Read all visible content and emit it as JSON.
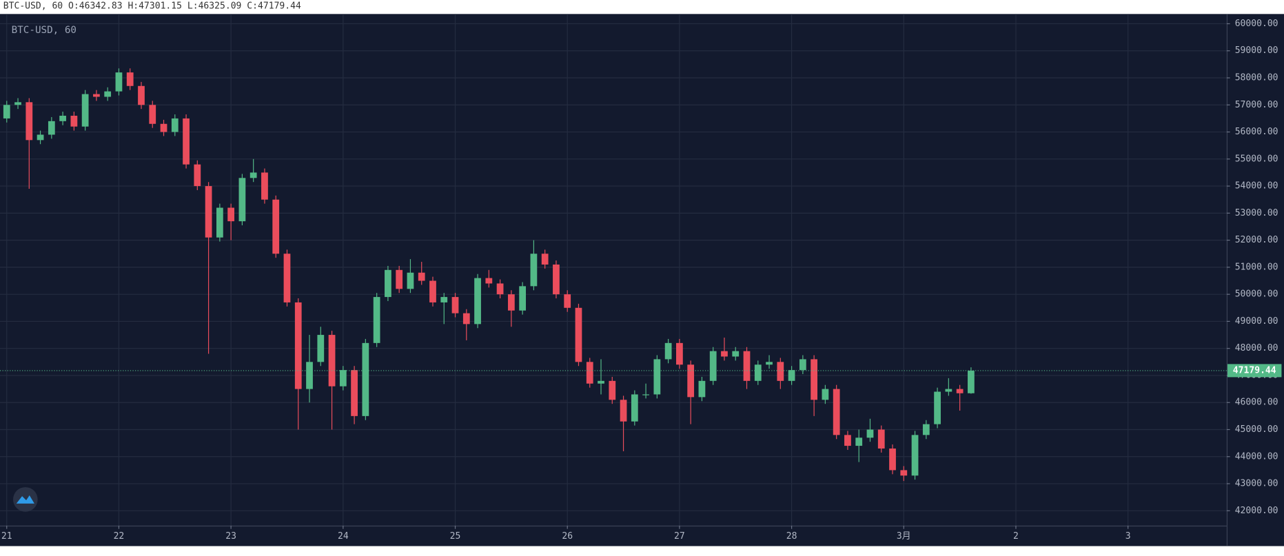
{
  "chart_data": {
    "type": "candlestick",
    "title": "BTC-USD, 60",
    "ohlc_labels": [
      "O:",
      "H:",
      "L:",
      "C:"
    ],
    "up_color": "#53b987",
    "down_color": "#eb4d5c",
    "grid": true,
    "price_line": true,
    "x": [
      0,
      0.1,
      0.2,
      0.3,
      0.4,
      0.5,
      0.6,
      0.7,
      0.8,
      0.9,
      1,
      1.1,
      1.2,
      1.3,
      1.4,
      1.5,
      1.6,
      1.7,
      1.8,
      1.9,
      2,
      2.1,
      2.2,
      2.3,
      2.4,
      2.5,
      2.6,
      2.7,
      2.8,
      2.9,
      3,
      3.1,
      3.2,
      3.3,
      3.4,
      3.5,
      3.6,
      3.7,
      3.8,
      3.9,
      4,
      4.1,
      4.2,
      4.3,
      4.4,
      4.5,
      4.6,
      4.7,
      4.8,
      4.9,
      5,
      5.1,
      5.2,
      5.3,
      5.4,
      5.5,
      5.6,
      5.7,
      5.8,
      5.9,
      6,
      6.1,
      6.2,
      6.3,
      6.4,
      6.5,
      6.6,
      6.7,
      6.8,
      6.9,
      7,
      7.1,
      7.2,
      7.3,
      7.4,
      7.5,
      7.6,
      7.7,
      7.8,
      7.9,
      8,
      8.1,
      8.2,
      8.3,
      8.4,
      8.5,
      8.6
    ],
    "open": [
      56500,
      57000,
      57100,
      55700,
      55900,
      56400,
      56600,
      56200,
      57400,
      57300,
      57500,
      58200,
      57700,
      57000,
      56300,
      56000,
      56500,
      54800,
      54000,
      52100,
      53200,
      52700,
      54300,
      54500,
      53500,
      51500,
      49700,
      46500,
      47500,
      48500,
      46600,
      47200,
      45500,
      48200,
      49900,
      50900,
      50200,
      50800,
      50500,
      49700,
      49900,
      49300,
      48900,
      50600,
      50400,
      50000,
      49400,
      50300,
      51500,
      51100,
      50000,
      49500,
      47500,
      46700,
      46800,
      46100,
      45300,
      46300,
      46300,
      47600,
      48200,
      47400,
      46200,
      46800,
      47900,
      47700,
      47900,
      46800,
      47400,
      47500,
      46800,
      47200,
      47600,
      46100,
      46500,
      44800,
      44400,
      44700,
      45000,
      44300,
      43500,
      43300,
      44800,
      45200,
      46400,
      46500,
      46342.83
    ],
    "high": [
      57150,
      57250,
      57250,
      56050,
      56550,
      56750,
      56750,
      57550,
      57550,
      57650,
      58350,
      58350,
      57850,
      57150,
      56450,
      56650,
      56650,
      54950,
      54150,
      53350,
      53350,
      54450,
      55000,
      54650,
      53650,
      51650,
      49850,
      48500,
      48800,
      48650,
      47350,
      47350,
      48350,
      50050,
      51050,
      51050,
      51300,
      51200,
      50650,
      50050,
      50050,
      49450,
      50750,
      50900,
      50550,
      50150,
      50450,
      52000,
      51650,
      51250,
      50150,
      49650,
      47650,
      47600,
      46950,
      46250,
      46450,
      46700,
      47750,
      48350,
      48350,
      47550,
      46950,
      48050,
      48400,
      48050,
      48050,
      47550,
      47750,
      47650,
      47350,
      47750,
      47750,
      46650,
      46650,
      44950,
      45000,
      45400,
      45150,
      44450,
      43650,
      44950,
      45350,
      46550,
      46900,
      46650,
      47301.15
    ],
    "low": [
      56350,
      56850,
      53900,
      55550,
      55750,
      56250,
      56050,
      56050,
      57150,
      57150,
      57350,
      57550,
      56850,
      56150,
      55850,
      55850,
      54650,
      53850,
      47800,
      51950,
      52000,
      52550,
      54150,
      53350,
      51350,
      49550,
      45000,
      46000,
      47350,
      45000,
      46450,
      45200,
      45350,
      48050,
      49750,
      50050,
      50050,
      50350,
      49550,
      48900,
      49150,
      48300,
      48750,
      50250,
      49850,
      48800,
      49250,
      50150,
      50950,
      49850,
      49350,
      47350,
      46550,
      46300,
      45950,
      44200,
      45150,
      46150,
      46150,
      47450,
      47250,
      45200,
      46050,
      46650,
      47550,
      47550,
      46500,
      46650,
      47250,
      46500,
      46650,
      47050,
      45500,
      45950,
      44650,
      44250,
      43800,
      44550,
      44150,
      43350,
      43100,
      43150,
      44650,
      45050,
      46250,
      45700,
      46325.09
    ],
    "close": [
      57000,
      57100,
      55700,
      55900,
      56400,
      56600,
      56200,
      57400,
      57300,
      57500,
      58200,
      57700,
      57000,
      56300,
      56000,
      56500,
      54800,
      54000,
      52100,
      53200,
      52700,
      54300,
      54500,
      53500,
      51500,
      49700,
      46500,
      47500,
      48500,
      46600,
      47200,
      45500,
      48200,
      49900,
      50900,
      50200,
      50800,
      50500,
      49700,
      49900,
      49300,
      48900,
      50600,
      50400,
      50000,
      49400,
      50300,
      51500,
      51100,
      50000,
      49500,
      47500,
      46700,
      46800,
      46100,
      45300,
      46300,
      46300,
      47600,
      48200,
      47400,
      46200,
      46800,
      47900,
      47700,
      47900,
      46800,
      47400,
      47500,
      46800,
      47200,
      47600,
      46100,
      46500,
      44800,
      44400,
      44700,
      45000,
      44300,
      43500,
      43300,
      44800,
      45200,
      46400,
      46500,
      46342.83,
      47179.44
    ],
    "xlim": [
      -0.06,
      10.88
    ],
    "xticks": [
      {
        "value": 0,
        "label": "21"
      },
      {
        "value": 1,
        "label": "22"
      },
      {
        "value": 2,
        "label": "23"
      },
      {
        "value": 3,
        "label": "24"
      },
      {
        "value": 4,
        "label": "25"
      },
      {
        "value": 5,
        "label": "26"
      },
      {
        "value": 6,
        "label": "27"
      },
      {
        "value": 7,
        "label": "28"
      },
      {
        "value": 8,
        "label": "3月"
      },
      {
        "value": 9,
        "label": "2"
      },
      {
        "value": 10,
        "label": "3"
      }
    ],
    "ylim": [
      41450,
      60360
    ],
    "yticks": [
      {
        "value": 42000,
        "label": "42000.00"
      },
      {
        "value": 43000,
        "label": "43000.00"
      },
      {
        "value": 44000,
        "label": "44000.00"
      },
      {
        "value": 45000,
        "label": "45000.00"
      },
      {
        "value": 46000,
        "label": "46000.00"
      },
      {
        "value": 47000,
        "label": "47000.00"
      },
      {
        "value": 48000,
        "label": "48000.00"
      },
      {
        "value": 49000,
        "label": "49000.00"
      },
      {
        "value": 50000,
        "label": "50000.00"
      },
      {
        "value": 51000,
        "label": "51000.00"
      },
      {
        "value": 52000,
        "label": "52000.00"
      },
      {
        "value": 53000,
        "label": "53000.00"
      },
      {
        "value": 54000,
        "label": "54000.00"
      },
      {
        "value": 55000,
        "label": "55000.00"
      },
      {
        "value": 56000,
        "label": "56000.00"
      },
      {
        "value": 57000,
        "label": "57000.00"
      },
      {
        "value": 58000,
        "label": "58000.00"
      },
      {
        "value": 59000,
        "label": "59000.00"
      },
      {
        "value": 60000,
        "label": "60000.00"
      }
    ]
  }
}
